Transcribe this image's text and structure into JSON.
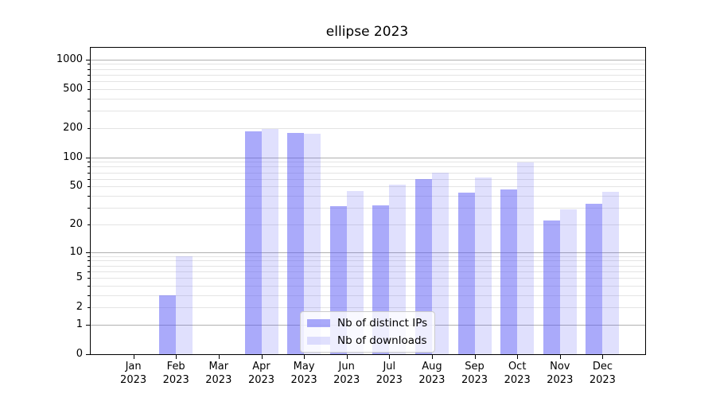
{
  "chart_data": {
    "type": "bar",
    "title": "ellipse 2023",
    "categories": [
      "Jan 2023",
      "Feb 2023",
      "Mar 2023",
      "Apr 2023",
      "May 2023",
      "Jun 2023",
      "Jul 2023",
      "Aug 2023",
      "Sep 2023",
      "Oct 2023",
      "Nov 2023",
      "Dec 2023"
    ],
    "series": [
      {
        "name": "Nb of distinct IPs",
        "color": "#5555F580",
        "values": [
          0,
          3,
          0,
          186,
          177,
          31,
          32,
          60,
          43,
          47,
          22,
          33
        ]
      },
      {
        "name": "Nb of downloads",
        "color": "#5555F52E",
        "values": [
          0,
          9,
          0,
          195,
          176,
          45,
          52,
          70,
          62,
          88,
          29,
          44
        ]
      }
    ],
    "xlabel": "",
    "ylabel": "",
    "scale": "log1p",
    "ylim": [
      0,
      1315
    ],
    "y_tick_labels": [
      0,
      1,
      2,
      5,
      10,
      20,
      50,
      100,
      200,
      500,
      1000
    ],
    "y_major_gridlines": [
      1,
      10,
      100,
      1000
    ],
    "grid": true,
    "legend_position": "lower-center"
  },
  "colors": {
    "grid_major": "#b0b0b0",
    "grid_minor": "#e4e4e4",
    "spine": "#000000",
    "legend_border": "#cccccc"
  }
}
